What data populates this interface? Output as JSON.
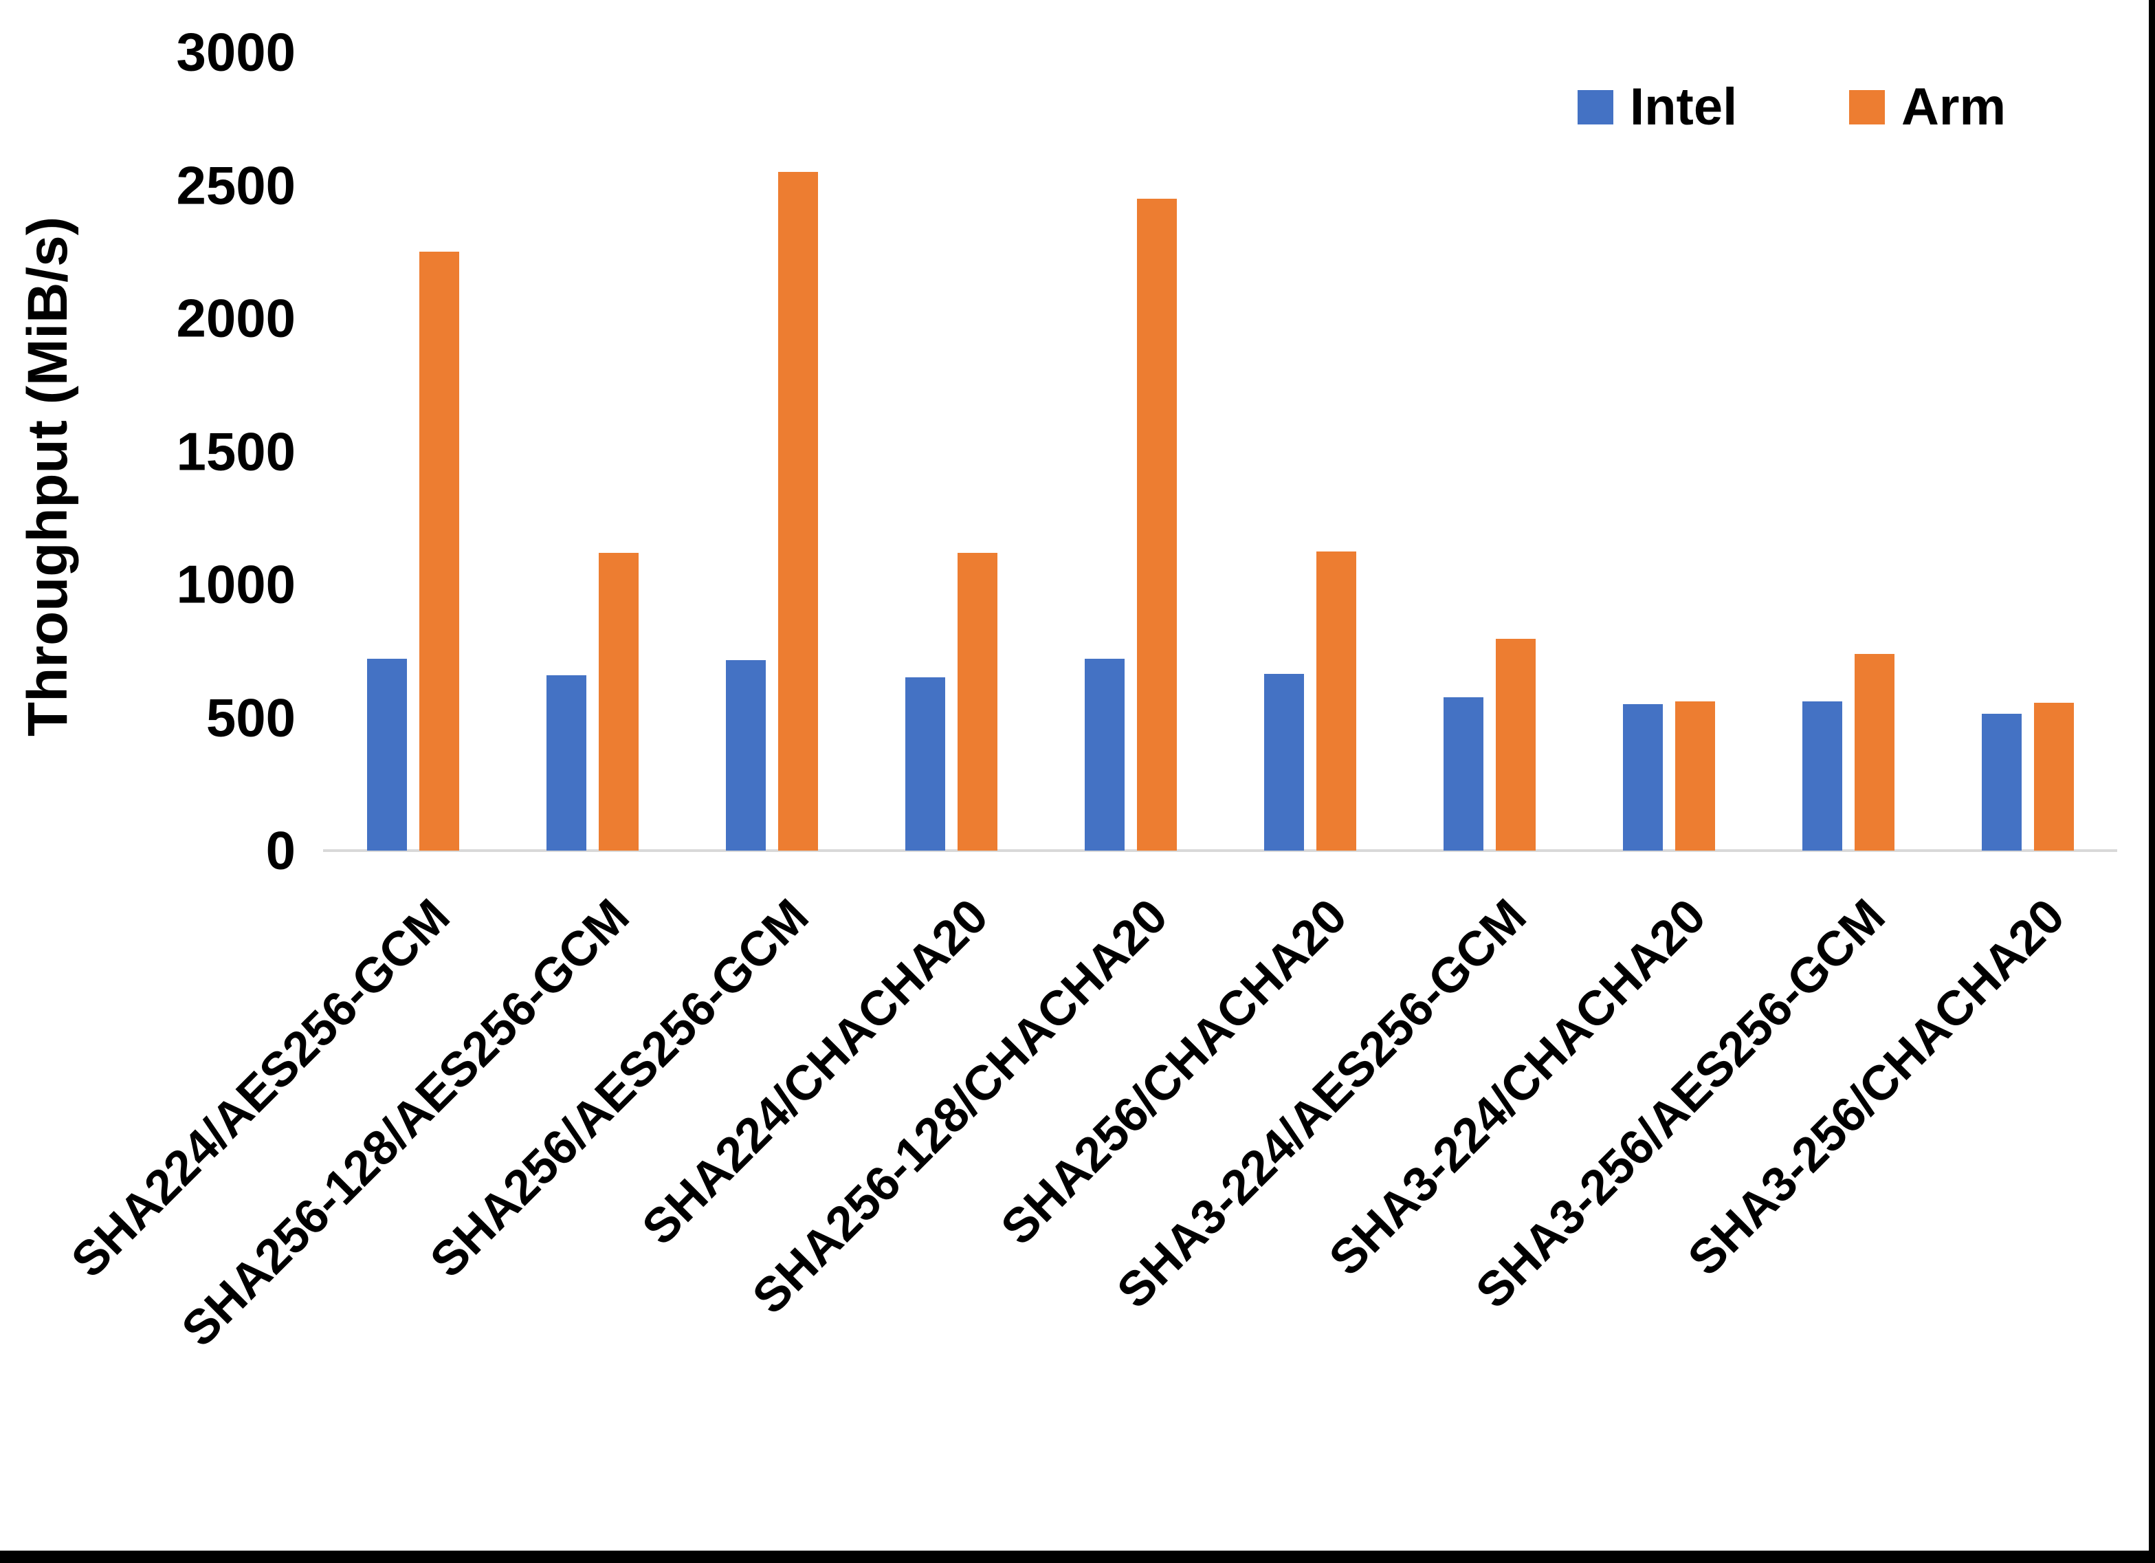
{
  "figure": {
    "background": "#ffffff",
    "border_color": "#000000",
    "axis_line_color": "#D9D9D9",
    "text_color": "#000000"
  },
  "chart_data": {
    "type": "bar",
    "title": "",
    "xlabel": "",
    "ylabel": "Throughput (MiB/s)",
    "ylim": [
      0,
      3000
    ],
    "yticks": [
      0,
      500,
      1000,
      1500,
      2000,
      2500,
      3000
    ],
    "grid": false,
    "legend_position": "top-right",
    "categories": [
      "SHA224/AES256-GCM",
      "SHA256-128/AES256-GCM",
      "SHA256/AES256-GCM",
      "SHA224/CHACHA20",
      "SHA256-128/CHACHA20",
      "SHA256/CHACHA20",
      "SHA3-224/AES256-GCM",
      "SHA3-224/CHACHA20",
      "SHA3-256/AES256-GCM",
      "SHA3-256/CHACHA20"
    ],
    "series": [
      {
        "name": "Intel",
        "color": "#4472C4",
        "values": [
          720,
          660,
          715,
          650,
          720,
          665,
          575,
          550,
          560,
          515
        ]
      },
      {
        "name": "Arm",
        "color": "#ED7D31",
        "values": [
          2250,
          1120,
          2550,
          1120,
          2450,
          1125,
          795,
          560,
          740,
          555
        ]
      }
    ]
  }
}
